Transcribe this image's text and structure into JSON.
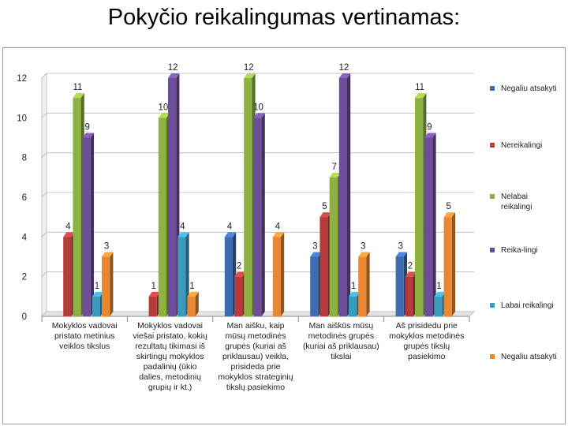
{
  "title": "Pokyčio reikalingumas vertinamas:",
  "chart_data": {
    "type": "bar",
    "style": "3d-clustered-column",
    "categories": [
      "Mokyklos vadovai pristato metinius veiklos tikslus",
      "Mokyklos vadovai viešai pristato, kokių rezultatų tikimasi iš skirtingų mokyklos padalinių (ūkio dalies, metodinių grupių ir kt.)",
      "Man aišku, kaip mūsų metodinės grupės (kuriai aš priklausau) veikla, prisideda prie mokyklos strateginių tikslų pasiekimo",
      "Man aiškūs mūsų metodinės grupės (kuriai aš priklausau) tikslai",
      "Aš prisidedu prie mokyklos metodinės grupės tikslų pasiekimo"
    ],
    "category_lines": [
      [
        "Mokyklos vadovai",
        "pristato metinius",
        "veiklos tikslus"
      ],
      [
        "Mokyklos vadovai",
        "viešai pristato, kokių",
        "rezultatų tikimasi iš",
        "skirtingų mokyklos",
        "padalinių (ūkio",
        "dalies, metodinių",
        "grupių ir kt.)"
      ],
      [
        "Man aišku, kaip",
        "mūsų metodinės",
        "grupės (kuriai aš",
        "priklausau) veikla,",
        "prisideda prie",
        "mokyklos strateginių",
        "tikslų pasiekimo"
      ],
      [
        "Man aiškūs mūsų",
        "metodinės grupės",
        "(kuriai aš priklausau)",
        "tikslai"
      ],
      [
        "Aš prisidedu prie",
        "mokyklos metodinės",
        "grupės tikslų",
        "pasiekimo"
      ]
    ],
    "series": [
      {
        "name": "Negaliu atsakyti",
        "color": "#3d6cb0",
        "values": [
          0,
          0,
          4,
          3,
          3
        ]
      },
      {
        "name": "Nereikalingi",
        "color": "#b33d3a",
        "values": [
          4,
          1,
          2,
          5,
          2
        ]
      },
      {
        "name": "Nelabai reikalingi",
        "legend_lines": [
          "Nelabai",
          "reikalingi"
        ],
        "color": "#8db243",
        "values": [
          11,
          10,
          12,
          7,
          11
        ]
      },
      {
        "name": "Reika-lingi",
        "color": "#6e4e9a",
        "values": [
          9,
          12,
          10,
          12,
          9
        ]
      },
      {
        "name": "Labai reikalingi",
        "color": "#3a9bbf",
        "values": [
          1,
          4,
          0,
          1,
          1
        ]
      },
      {
        "name": "Negaliu atsakyti",
        "color": "#e98732",
        "values": [
          3,
          1,
          4,
          3,
          5
        ]
      }
    ],
    "y_ticks": [
      0,
      2,
      4,
      6,
      8,
      10,
      12
    ],
    "ylim": [
      0,
      12
    ],
    "grid": true,
    "legend": "right",
    "data_labels": true
  }
}
